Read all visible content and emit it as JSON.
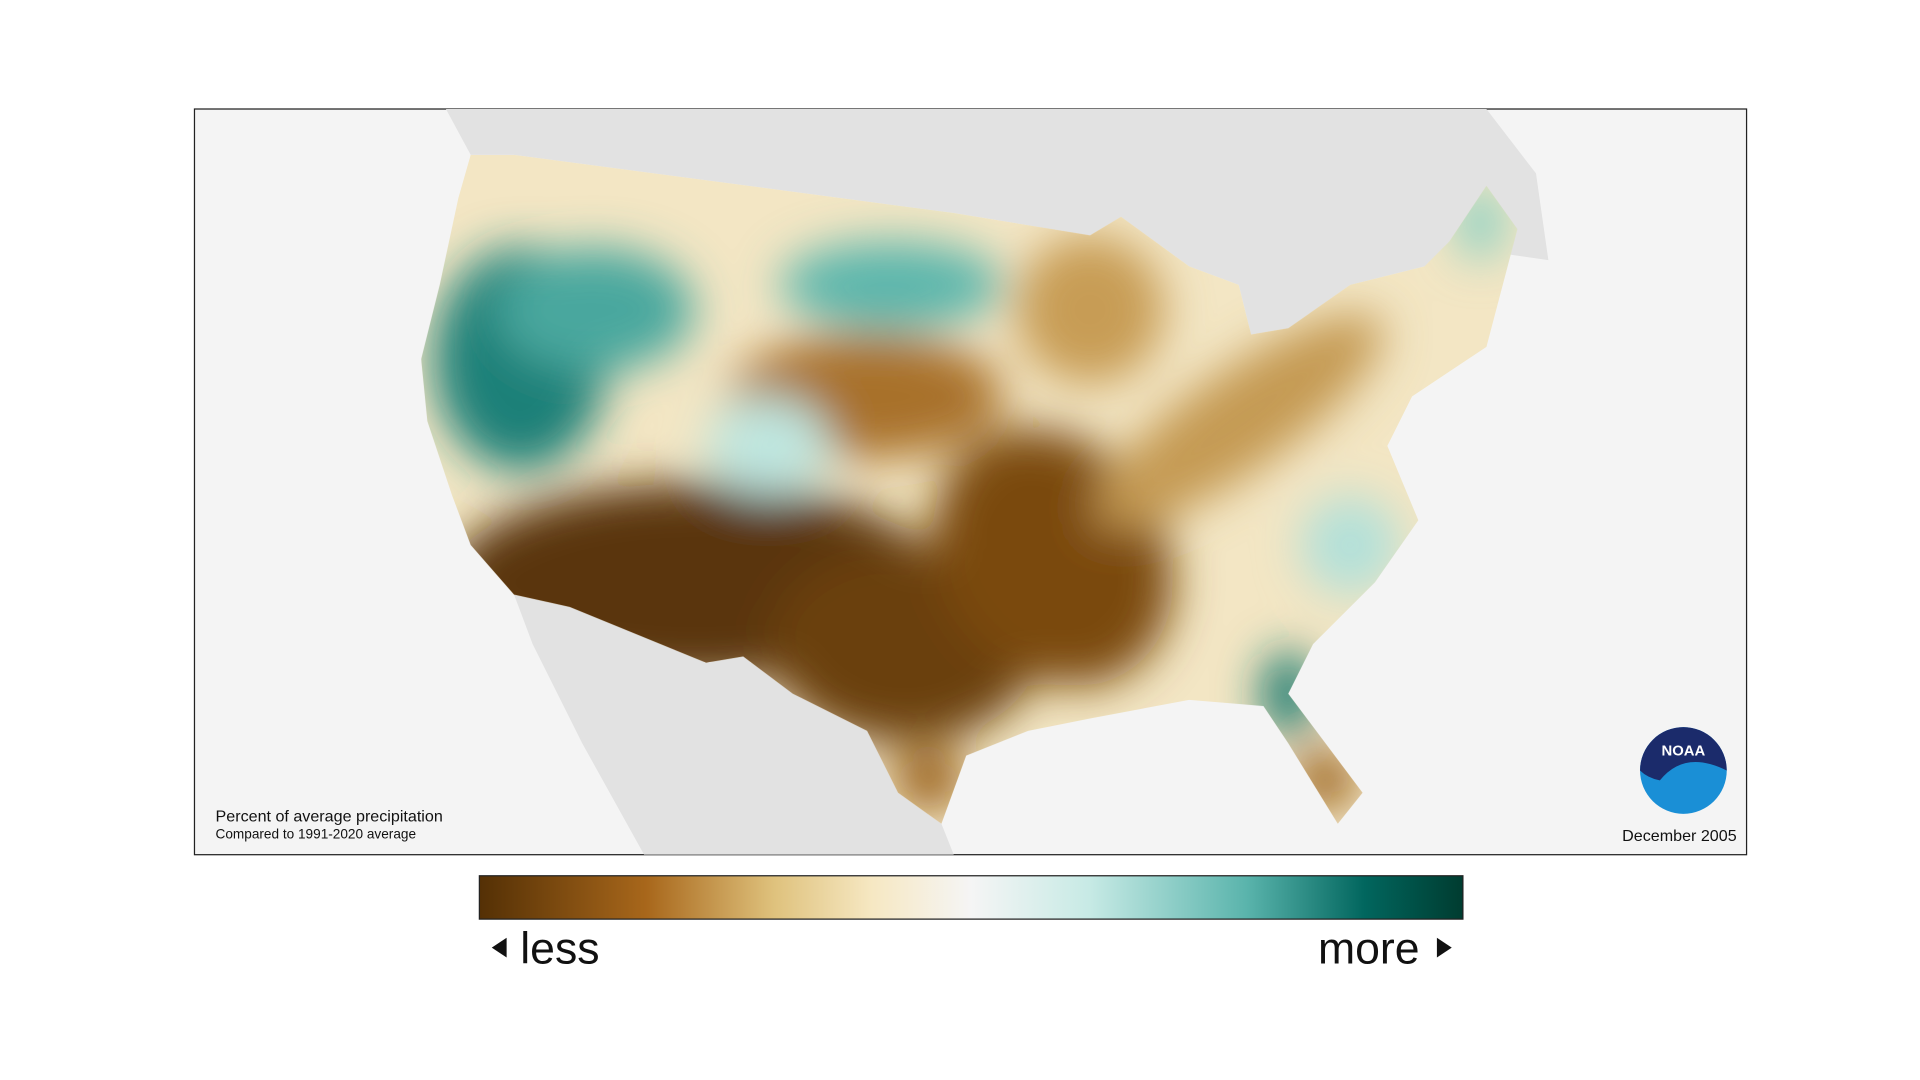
{
  "map": {
    "caption": {
      "title": "Percent of average precipitation",
      "subtitle": "Compared to 1991-2020 average"
    },
    "date": "December 2005",
    "logo": "NOAA"
  },
  "legend": {
    "low_label": "less",
    "high_label": "more"
  }
}
